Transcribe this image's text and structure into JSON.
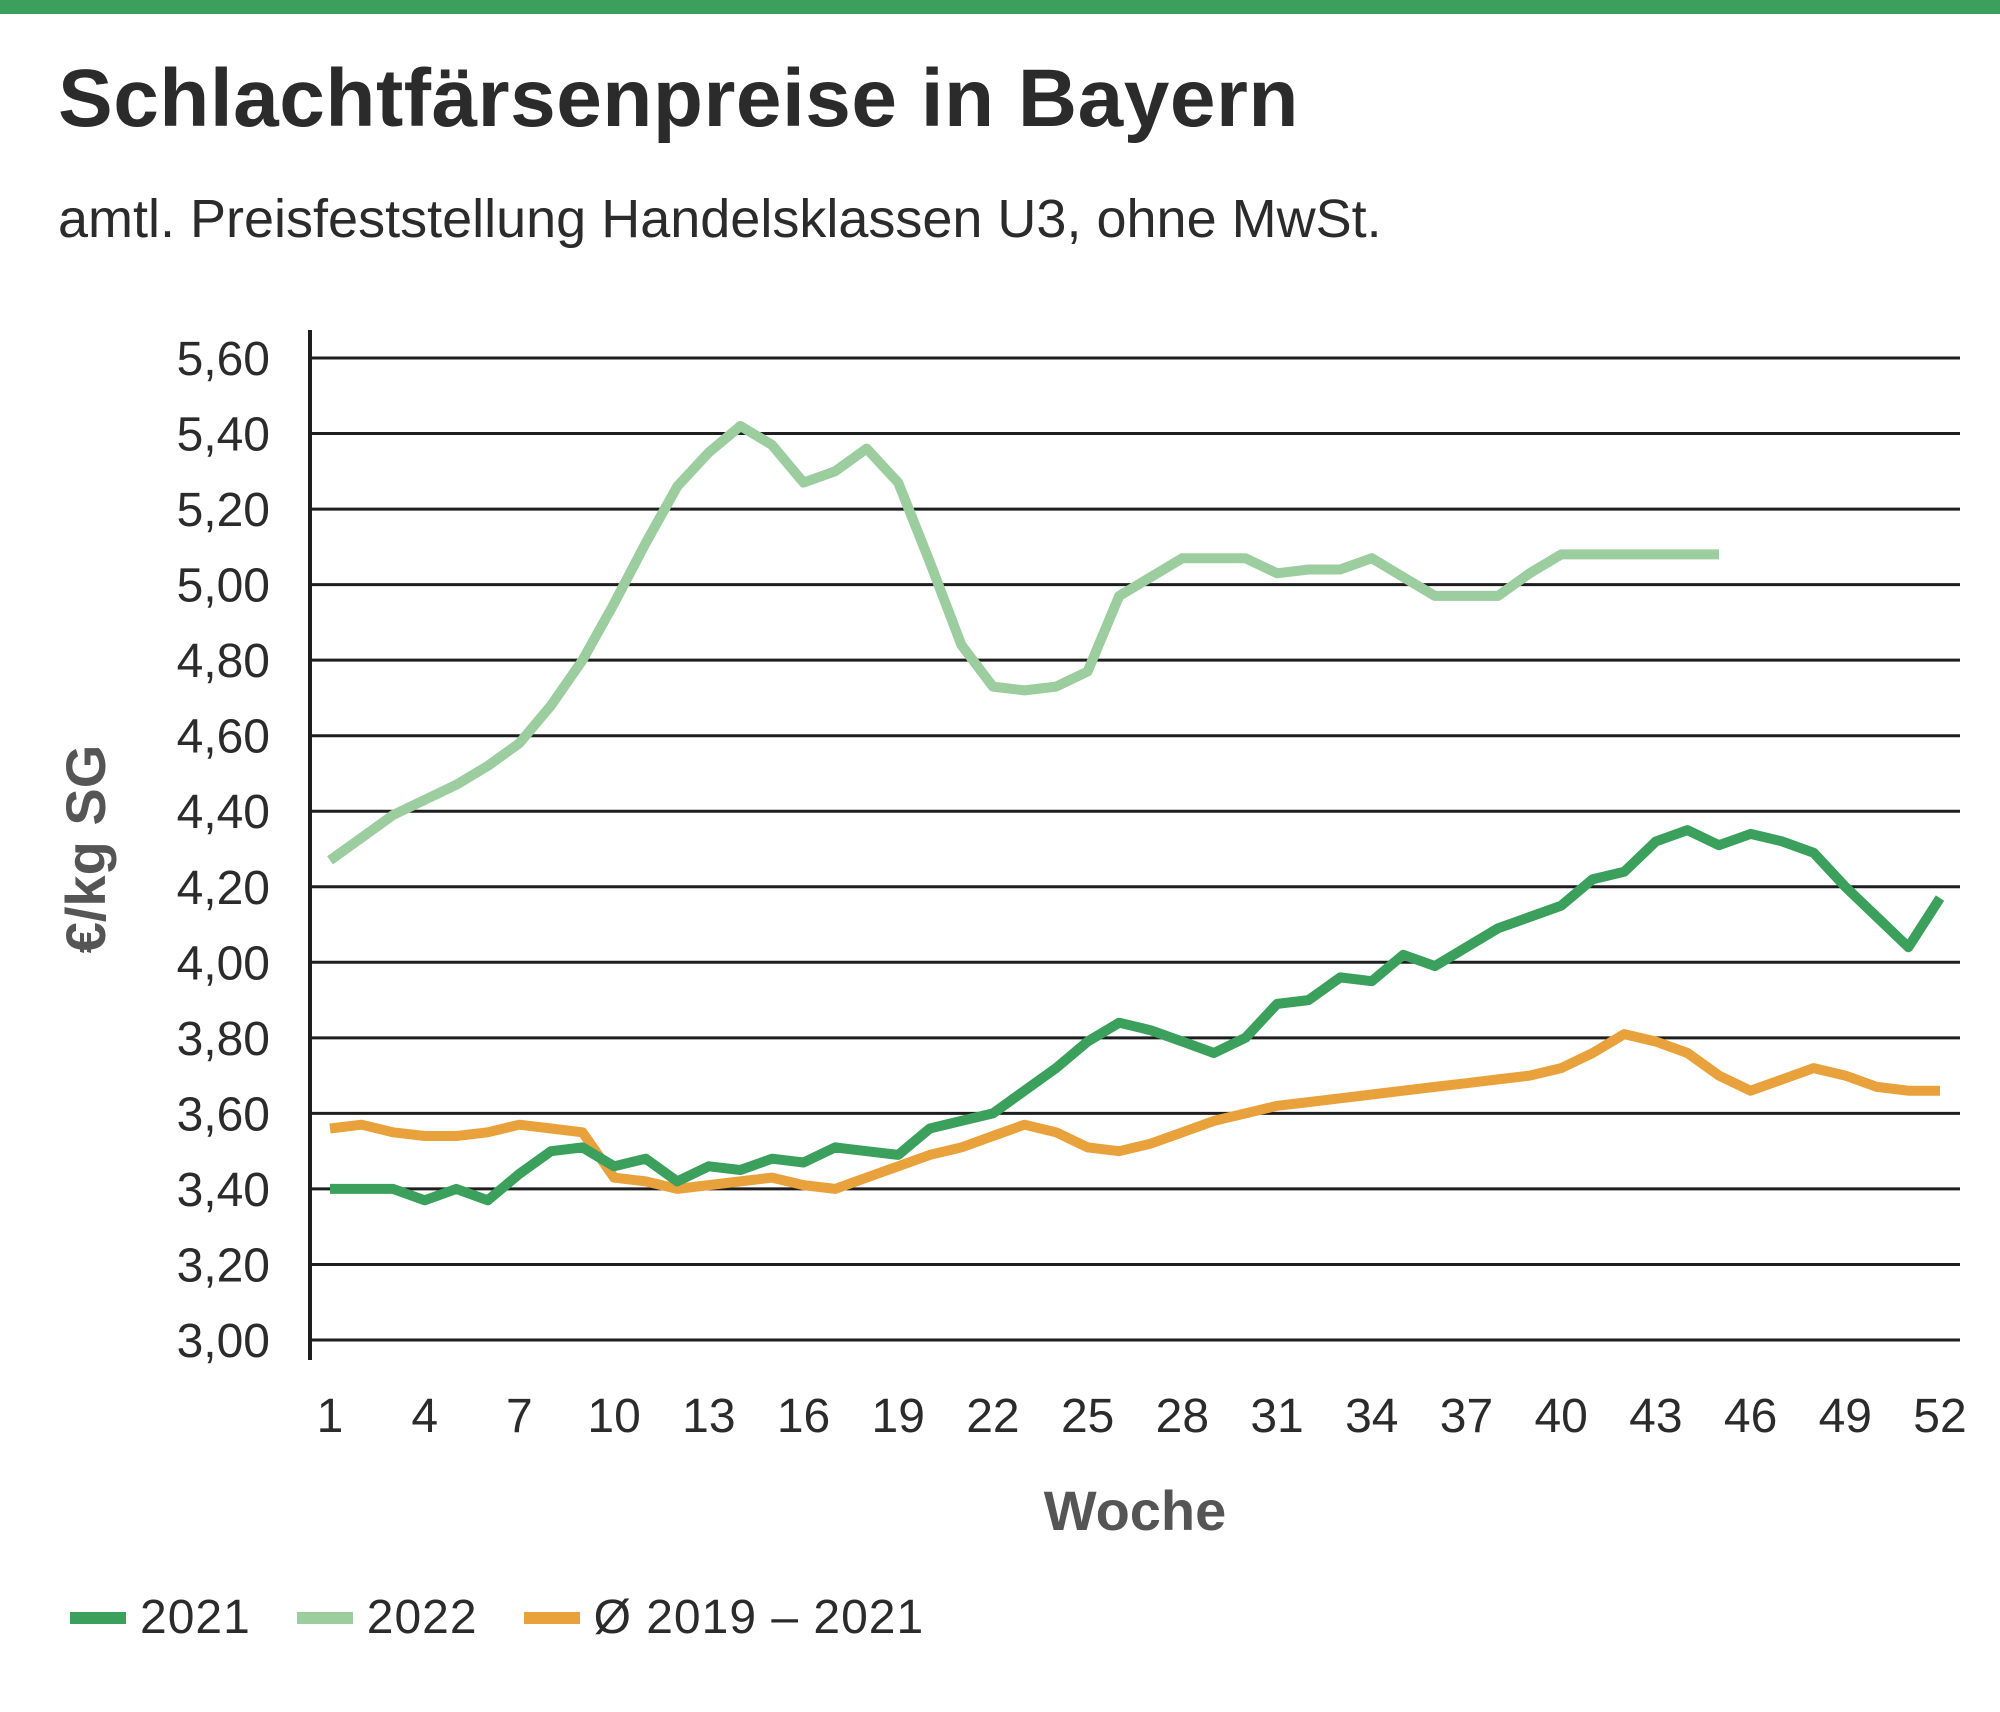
{
  "header": {
    "title": "Schlachtfärsenpreise in Bayern",
    "subtitle": "amtl. Preisfeststellung Handelsklassen U3, ohne MwSt."
  },
  "chart_data": {
    "type": "line",
    "title": "Schlachtfärsenpreise in Bayern",
    "subtitle": "amtl. Preisfeststellung Handelsklassen U3, ohne MwSt.",
    "xlabel": "Woche",
    "ylabel": "€/kg SG",
    "xlim": [
      1,
      52
    ],
    "ylim": [
      3.0,
      5.6
    ],
    "x_ticks": [
      "1",
      "4",
      "7",
      "10",
      "13",
      "16",
      "19",
      "22",
      "25",
      "28",
      "31",
      "34",
      "37",
      "40",
      "43",
      "46",
      "49",
      "52"
    ],
    "y_ticks": [
      "3,00",
      "3,20",
      "3,40",
      "3,60",
      "3,80",
      "4,00",
      "4,20",
      "4,40",
      "4,60",
      "4,80",
      "5,00",
      "5,20",
      "5,40",
      "5,60"
    ],
    "grid": "horizontal",
    "legend_position": "bottom-left",
    "series": [
      {
        "name": "2021",
        "color": "#3aa05c",
        "x": [
          1,
          2,
          3,
          4,
          5,
          6,
          7,
          8,
          9,
          10,
          11,
          12,
          13,
          14,
          15,
          16,
          17,
          18,
          19,
          20,
          21,
          22,
          23,
          24,
          25,
          26,
          27,
          28,
          29,
          30,
          31,
          32,
          33,
          34,
          35,
          36,
          37,
          38,
          39,
          40,
          41,
          42,
          43,
          44,
          45,
          46,
          47,
          48,
          49,
          50,
          51,
          52
        ],
        "values": [
          3.4,
          3.4,
          3.4,
          3.37,
          3.4,
          3.37,
          3.44,
          3.5,
          3.51,
          3.46,
          3.48,
          3.42,
          3.46,
          3.45,
          3.48,
          3.47,
          3.51,
          3.5,
          3.49,
          3.56,
          3.58,
          3.6,
          3.66,
          3.72,
          3.79,
          3.84,
          3.82,
          3.79,
          3.76,
          3.8,
          3.89,
          3.9,
          3.96,
          3.95,
          4.02,
          3.99,
          4.04,
          4.09,
          4.12,
          4.15,
          4.22,
          4.24,
          4.32,
          4.35,
          4.31,
          4.34,
          4.32,
          4.29,
          4.2,
          4.12,
          4.04,
          4.17
        ]
      },
      {
        "name": "2022",
        "color": "#9ccd9f",
        "x": [
          1,
          2,
          3,
          4,
          5,
          6,
          7,
          8,
          9,
          10,
          11,
          12,
          13,
          14,
          15,
          16,
          17,
          18,
          19,
          20,
          21,
          22,
          23,
          24,
          25,
          26,
          27,
          28,
          29,
          30,
          31,
          32,
          33,
          34,
          35,
          36,
          37,
          38,
          39,
          40,
          41,
          42,
          43,
          44,
          45
        ],
        "values": [
          4.27,
          4.33,
          4.39,
          4.43,
          4.47,
          4.52,
          4.58,
          4.68,
          4.8,
          4.95,
          5.11,
          5.26,
          5.35,
          5.42,
          5.37,
          5.27,
          5.3,
          5.36,
          5.27,
          5.06,
          4.84,
          4.73,
          4.72,
          4.73,
          4.77,
          4.97,
          5.02,
          5.07,
          5.07,
          5.07,
          5.03,
          5.04,
          5.04,
          5.07,
          5.02,
          4.97,
          4.97,
          4.97,
          5.03,
          5.08,
          5.08,
          5.08,
          5.08,
          5.08,
          5.08
        ]
      },
      {
        "name": "Ø 2019 – 2021",
        "color": "#e9a23b",
        "x": [
          1,
          2,
          3,
          4,
          5,
          6,
          7,
          8,
          9,
          10,
          11,
          12,
          13,
          14,
          15,
          16,
          17,
          18,
          19,
          20,
          21,
          22,
          23,
          24,
          25,
          26,
          27,
          28,
          29,
          30,
          31,
          32,
          33,
          34,
          35,
          36,
          37,
          38,
          39,
          40,
          41,
          42,
          43,
          44,
          45,
          46,
          47,
          48,
          49,
          50,
          51,
          52
        ],
        "values": [
          3.56,
          3.57,
          3.55,
          3.54,
          3.54,
          3.55,
          3.57,
          3.56,
          3.55,
          3.43,
          3.42,
          3.4,
          3.41,
          3.42,
          3.43,
          3.41,
          3.4,
          3.43,
          3.46,
          3.49,
          3.51,
          3.54,
          3.57,
          3.55,
          3.51,
          3.5,
          3.52,
          3.55,
          3.58,
          3.6,
          3.62,
          3.63,
          3.64,
          3.65,
          3.66,
          3.67,
          3.68,
          3.69,
          3.7,
          3.72,
          3.76,
          3.81,
          3.79,
          3.76,
          3.7,
          3.66,
          3.69,
          3.72,
          3.7,
          3.67,
          3.66,
          3.66
        ]
      }
    ]
  }
}
